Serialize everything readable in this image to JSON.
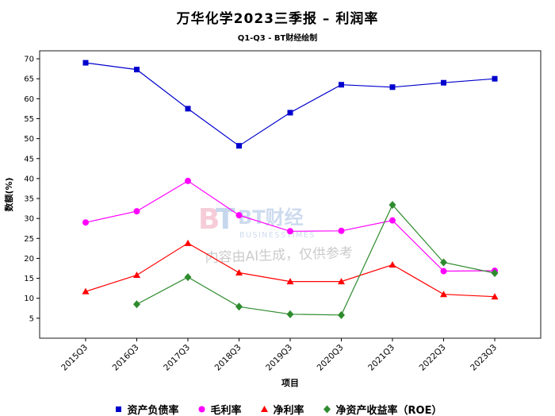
{
  "title": "万华化学2023三季报 – 利润率",
  "subtitle": "Q1-Q3 - BT财经绘制",
  "watermark": {
    "logo_b": "B",
    "logo_t": "T",
    "brand": "BT财经",
    "brand_sub": "BUSINESSTIMES",
    "notice": "内容由AI生成，仅供参考",
    "logo_color_b": "#ef9ab5",
    "logo_color_t": "#8fb0dc",
    "brand_color": "#9db8e0",
    "notice_color": "#999999"
  },
  "chart_data": {
    "type": "line",
    "title": "万华化学2023三季报 – 利润率",
    "xlabel": "项目",
    "ylabel": "数额(%)",
    "categories": [
      "2015Q3",
      "2016Q3",
      "2017Q3",
      "2018Q3",
      "2019Q3",
      "2020Q3",
      "2021Q3",
      "2022Q3",
      "2023Q3"
    ],
    "ylim": [
      0,
      72
    ],
    "yticks": [
      5,
      10,
      15,
      20,
      25,
      30,
      35,
      40,
      45,
      50,
      55,
      60,
      65,
      70
    ],
    "grid": false,
    "legend_position": "bottom",
    "series": [
      {
        "name": "资产负债率",
        "color": "#0000cd",
        "marker": "square",
        "values": [
          69,
          67.3,
          57.5,
          48.2,
          56.5,
          63.5,
          62.9,
          64,
          65
        ]
      },
      {
        "name": "毛利率",
        "color": "#ff00ff",
        "marker": "circle",
        "values": [
          29,
          31.8,
          39.4,
          30.8,
          26.8,
          26.9,
          29.5,
          16.8,
          16.9
        ]
      },
      {
        "name": "净利率",
        "color": "#ff0000",
        "marker": "triangle",
        "values": [
          11.7,
          15.8,
          23.8,
          16.4,
          14.2,
          14.2,
          18.4,
          11,
          10.4
        ]
      },
      {
        "name": "净资产收益率（ROE）",
        "color": "#2e8b2e",
        "marker": "diamond",
        "values": [
          null,
          8.5,
          15.3,
          7.9,
          6,
          5.8,
          33.4,
          19,
          16.3
        ]
      }
    ]
  }
}
